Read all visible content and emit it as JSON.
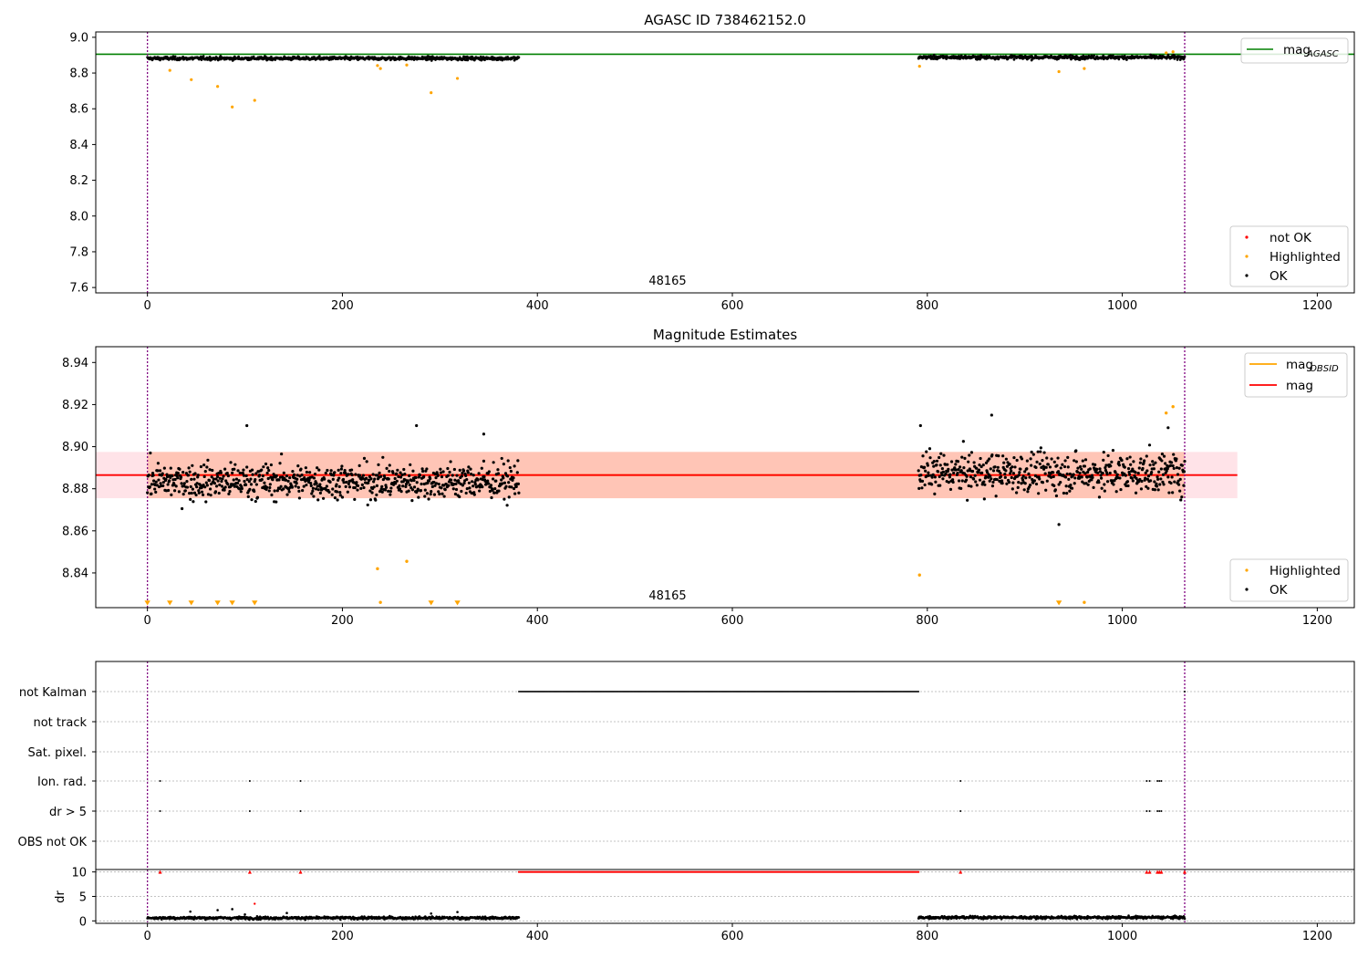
{
  "chart_data": [
    {
      "type": "scatter",
      "title": "AGASC ID 738462152.0",
      "xlim": [
        -53,
        1238
      ],
      "ylim": [
        7.57,
        9.03
      ],
      "xticks": [
        0,
        200,
        400,
        600,
        800,
        1000,
        1200
      ],
      "xtick_labels": [
        "0",
        "200",
        "400",
        "600",
        "800",
        "1000",
        "1200"
      ],
      "yticks": [
        7.6,
        7.8,
        8.0,
        8.2,
        8.4,
        8.6,
        8.8,
        9.0
      ],
      "ytick_labels": [
        "7.6",
        "7.8",
        "8.0",
        "8.2",
        "8.4",
        "8.6",
        "8.8",
        "9.0"
      ],
      "obsid_boundaries": [
        0,
        1064
      ],
      "obsid_label": {
        "text": "48165",
        "x": 532
      },
      "hlines": [
        {
          "name": "mag",
          "name_sub": "AGASC",
          "y": 8.905,
          "color": "#008000"
        }
      ],
      "legend_lines": [
        {
          "name": "mag",
          "name_sub": "AGASC",
          "color": "#008000"
        }
      ],
      "legend_points": [
        {
          "name": "not OK",
          "color": "#ff0000"
        },
        {
          "name": "Highlighted",
          "color": "#ffa500"
        },
        {
          "name": "OK",
          "color": "#000000"
        }
      ],
      "series": [
        {
          "name": "not OK",
          "color": "#ff0000",
          "x": [],
          "y": []
        },
        {
          "name": "Highlighted",
          "color": "#ffa500",
          "x": [
            23,
            45,
            72,
            87,
            110,
            236,
            239,
            266,
            291,
            318,
            792,
            935,
            961,
            1045,
            1052
          ],
          "y": [
            8.815,
            8.763,
            8.725,
            8.61,
            8.647,
            8.842,
            8.825,
            8.845,
            8.69,
            8.77,
            8.838,
            8.808,
            8.825,
            8.913,
            8.919
          ]
        },
        {
          "name": "OK",
          "color": "#000000",
          "segments": [
            {
              "x_start": 0,
              "x_end": 381,
              "y_center": 8.882,
              "y_spread": 0.012
            },
            {
              "x_start": 791,
              "x_end": 1064,
              "y_center": 8.888,
              "y_spread": 0.013
            }
          ]
        }
      ]
    },
    {
      "type": "scatter",
      "title": "Magnitude Estimates",
      "xlim": [
        -53,
        1238
      ],
      "ylim": [
        8.8235,
        8.9475
      ],
      "xticks": [
        0,
        200,
        400,
        600,
        800,
        1000,
        1200
      ],
      "xtick_labels": [
        "0",
        "200",
        "400",
        "600",
        "800",
        "1000",
        "1200"
      ],
      "yticks": [
        8.84,
        8.86,
        8.88,
        8.9,
        8.92,
        8.94
      ],
      "ytick_labels": [
        "8.84",
        "8.86",
        "8.88",
        "8.90",
        "8.92",
        "8.94"
      ],
      "obsid_boundaries": [
        0,
        1064
      ],
      "obsid_label": {
        "text": "48165",
        "x": 532
      },
      "bands": [
        {
          "name": "mag",
          "x_range": [
            -53,
            1118
          ],
          "y_range": [
            8.8755,
            8.8975
          ],
          "color": "#ffc0cb"
        },
        {
          "name": "mag_OBSID",
          "x_range": [
            0,
            1064
          ],
          "y_range": [
            8.8755,
            8.8975
          ],
          "color": "#ffa07a"
        }
      ],
      "hlines": [
        {
          "name": "mag",
          "name_sub": "OBSID",
          "y": 8.8865,
          "x_range": [
            0,
            1064
          ],
          "color": "#ffa500"
        },
        {
          "name": "mag",
          "y": 8.8865,
          "x_range": [
            -53,
            1118
          ],
          "color": "#ff0000"
        }
      ],
      "legend_lines": [
        {
          "name": "mag",
          "name_sub": "OBSID",
          "color": "#ffa500"
        },
        {
          "name": "mag",
          "color": "#ff0000"
        }
      ],
      "legend_points": [
        {
          "name": "Highlighted",
          "color": "#ffa500"
        },
        {
          "name": "OK",
          "color": "#000000"
        }
      ],
      "series": [
        {
          "name": "Highlighted",
          "color": "#ffa500",
          "x": [
            236,
            266,
            792,
            1045,
            1052,
            239,
            961
          ],
          "y": [
            8.842,
            8.8455,
            8.839,
            8.916,
            8.919,
            8.826,
            8.826
          ]
        },
        {
          "name": "Highlighted (below range)",
          "color": "#ffa500",
          "marker": "triangle-down",
          "x": [
            0,
            23,
            45,
            72,
            87,
            110,
            291,
            318,
            935
          ],
          "y": [
            8.8258,
            8.8258,
            8.8258,
            8.8258,
            8.8258,
            8.8258,
            8.8258,
            8.8258,
            8.8258
          ]
        },
        {
          "name": "OK",
          "color": "#000000",
          "segments": [
            {
              "x_start": 0,
              "x_end": 381,
              "y_center": 8.8835,
              "y_spread": 0.011
            },
            {
              "x_start": 791,
              "x_end": 1064,
              "y_center": 8.8875,
              "y_spread": 0.012
            }
          ],
          "extremes": {
            "x": [
              102,
              276,
              345,
              793,
              866,
              935,
              1047
            ],
            "y": [
              8.91,
              8.91,
              8.906,
              8.91,
              8.915,
              8.863,
              8.909
            ]
          }
        }
      ]
    },
    {
      "type": "scatter",
      "xlim": [
        -53,
        1238
      ],
      "xticks": [
        0,
        200,
        400,
        600,
        800,
        1000,
        1200
      ],
      "xtick_labels": [
        "0",
        "200",
        "400",
        "600",
        "800",
        "1000",
        "1200"
      ],
      "obsid_boundaries": [
        0,
        1064
      ],
      "flag_rows": [
        "not Kalman",
        "not track",
        "Sat. pixel.",
        "Ion. rad.",
        "dr > 5",
        "OBS not OK"
      ],
      "flags": {
        "not Kalman": {
          "ranges": [
            [
              381,
              791
            ]
          ],
          "points": [
            1064
          ]
        },
        "Ion. rad.": {
          "points": [
            13,
            105,
            157,
            834,
            1025,
            1028,
            1036,
            1038,
            1040
          ]
        },
        "dr > 5": {
          "points": [
            13,
            105,
            157,
            834,
            1025,
            1028,
            1036,
            1038,
            1040
          ]
        }
      },
      "dr_panel": {
        "ylabel": "dr",
        "ylim": [
          -0.5,
          10.5
        ],
        "yticks": [
          0,
          5,
          10
        ],
        "ytick_labels": [
          "0",
          "5",
          "10"
        ],
        "clip_value": 10,
        "clipped": {
          "ranges": [
            [
              381,
              791
            ]
          ],
          "points": [
            13,
            105,
            157,
            834,
            1025,
            1028,
            1036,
            1038,
            1040,
            1064
          ]
        },
        "red_points": {
          "x": [
            110
          ],
          "y": [
            3.5
          ]
        },
        "segments": [
          {
            "x_start": 0,
            "x_end": 381,
            "y_center": 0.6,
            "y_spread": 0.35
          },
          {
            "x_start": 791,
            "x_end": 1064,
            "y_center": 0.7,
            "y_spread": 0.35
          }
        ],
        "extra_points": {
          "x": [
            44,
            72,
            87,
            100,
            143,
            291,
            318
          ],
          "y": [
            1.9,
            2.2,
            2.4,
            1.3,
            1.6,
            1.5,
            1.8
          ]
        }
      }
    }
  ]
}
